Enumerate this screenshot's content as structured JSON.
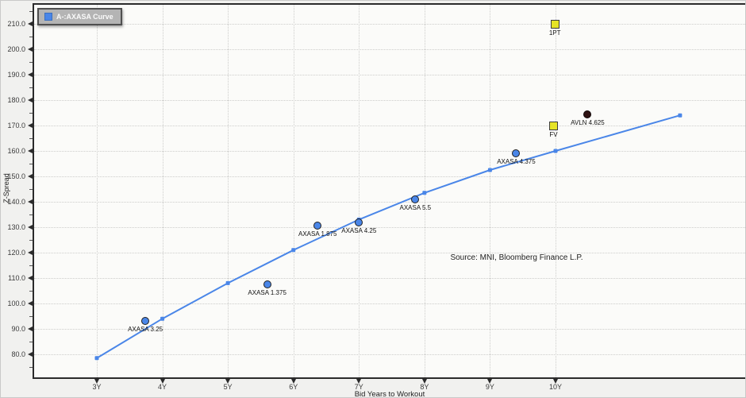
{
  "chart": {
    "legend": {
      "label": "A-:AXASA Curve",
      "swatch_color": "#4a86e8"
    },
    "y_axis_title": "Z-Spread",
    "x_axis_title": "Bid Years to Workout",
    "source_note": "Source: MNI, Bloomberg Finance L.P."
  },
  "chart_data": {
    "type": "line",
    "title": "A-:AXASA Curve",
    "xlabel": "Bid Years to Workout",
    "ylabel": "Z-Spread",
    "xlim": [
      2,
      12.9
    ],
    "ylim": [
      70,
      217.5
    ],
    "grid": "dotted",
    "legend_position": "top-left",
    "x_ticks": [
      {
        "label": "3Y",
        "value": 3
      },
      {
        "label": "4Y",
        "value": 4
      },
      {
        "label": "5Y",
        "value": 5
      },
      {
        "label": "6Y",
        "value": 6
      },
      {
        "label": "7Y",
        "value": 7
      },
      {
        "label": "8Y",
        "value": 8
      },
      {
        "label": "9Y",
        "value": 9
      },
      {
        "label": "10Y",
        "value": 10
      }
    ],
    "y_ticks": [
      {
        "label": "210.0",
        "value": 210
      },
      {
        "label": "200.0",
        "value": 200
      },
      {
        "label": "190.0",
        "value": 190
      },
      {
        "label": "180.0",
        "value": 180
      },
      {
        "label": "170.0",
        "value": 170
      },
      {
        "label": "160.0",
        "value": 160
      },
      {
        "label": "150.0",
        "value": 150
      },
      {
        "label": "140.0",
        "value": 140
      },
      {
        "label": "130.0",
        "value": 130
      },
      {
        "label": "120.0",
        "value": 120
      },
      {
        "label": "110.0",
        "value": 110
      },
      {
        "label": "100.0",
        "value": 100
      },
      {
        "label": "90.0",
        "value": 90
      },
      {
        "label": "80.0",
        "value": 80
      }
    ],
    "series": [
      {
        "name": "A-:AXASA Curve",
        "type": "line",
        "color": "#4a86e8",
        "x": [
          3,
          4,
          5,
          6,
          7,
          8,
          9,
          10,
          11.9
        ],
        "y": [
          78.5,
          94,
          108,
          121,
          133,
          143.5,
          152.5,
          160,
          174
        ]
      }
    ],
    "scatter_points": [
      {
        "label": "AXASA 3.25",
        "x": 3.74,
        "y": 93,
        "marker": "circle",
        "color": "#4a86e8"
      },
      {
        "label": "AXASA 1.375",
        "x": 5.6,
        "y": 107.5,
        "marker": "circle",
        "color": "#4a86e8"
      },
      {
        "label": "AXASA 1.875",
        "x": 6.37,
        "y": 130.5,
        "marker": "circle",
        "color": "#4a86e8"
      },
      {
        "label": "AXASA 4.25",
        "x": 7.0,
        "y": 132,
        "marker": "circle",
        "color": "#4a86e8"
      },
      {
        "label": "AXASA 5.5",
        "x": 7.86,
        "y": 141,
        "marker": "circle",
        "color": "#4a86e8"
      },
      {
        "label": "AXASA 4.375",
        "x": 9.4,
        "y": 159,
        "marker": "circle",
        "color": "#4a86e8"
      },
      {
        "label": "FV",
        "x": 9.97,
        "y": 170,
        "marker": "square",
        "color": "#e6e426"
      },
      {
        "label": "1PT",
        "x": 9.99,
        "y": 210,
        "marker": "square",
        "color": "#e6e426"
      },
      {
        "label": "AVLN 4.625",
        "x": 10.49,
        "y": 174.5,
        "marker": "circle",
        "color": "#2f1212"
      }
    ],
    "source": "Source: MNI, Bloomberg Finance L.P."
  }
}
